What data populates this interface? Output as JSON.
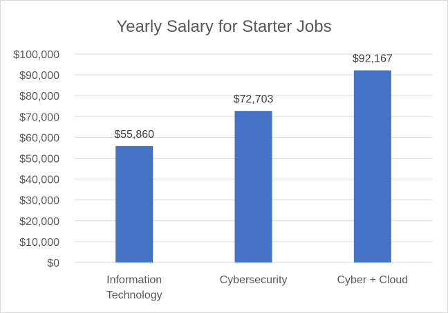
{
  "chart_data": {
    "type": "bar",
    "title": "Yearly Salary for Starter Jobs",
    "categories": [
      [
        "Information",
        "Technology"
      ],
      [
        "Cybersecurity"
      ],
      [
        "Cyber + Cloud"
      ]
    ],
    "values": [
      55860,
      72703,
      92167
    ],
    "data_labels": [
      "$55,860",
      "$72,703",
      "$92,167"
    ],
    "yticks": [
      "$0",
      "$10,000",
      "$20,000",
      "$30,000",
      "$40,000",
      "$50,000",
      "$60,000",
      "$70,000",
      "$80,000",
      "$90,000",
      "$100,000"
    ],
    "ylim": [
      0,
      100000
    ],
    "xlabel": "",
    "ylabel": "",
    "grid": true,
    "legend": "none",
    "colors": {
      "bar": "#4472c4",
      "grid": "#d9d9d9",
      "text": "#595959"
    }
  }
}
